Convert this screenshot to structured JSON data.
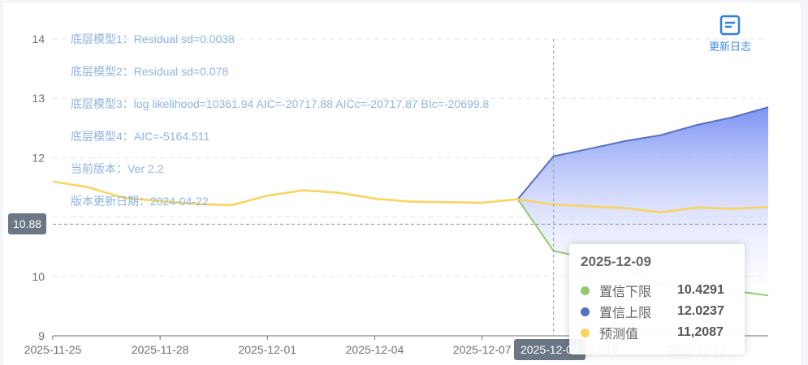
{
  "chart_data": {
    "type": "area",
    "x": [
      "2025-11-25",
      "2025-11-26",
      "2025-11-27",
      "2025-11-28",
      "2025-11-29",
      "2025-11-30",
      "2025-12-01",
      "2025-12-02",
      "2025-12-03",
      "2025-12-04",
      "2025-12-05",
      "2025-12-06",
      "2025-12-07",
      "2025-12-08",
      "2025-12-09",
      "2025-12-10",
      "2025-12-11",
      "2025-12-12",
      "2025-12-13",
      "2025-12-14",
      "2025-12-15"
    ],
    "xticks": [
      "2025-11-25",
      "2025-11-28",
      "2025-12-01",
      "2025-12-04",
      "2025-12-07",
      "2025-12-10",
      "2025-12-13"
    ],
    "yticks": [
      9,
      10,
      11,
      12,
      13,
      14
    ],
    "ylim": [
      9,
      14
    ],
    "grid": true,
    "series": [
      {
        "name": "预测值",
        "color": "#fbd25a",
        "values": [
          11.6,
          11.5,
          11.32,
          11.27,
          11.22,
          11.2,
          11.36,
          11.45,
          11.41,
          11.31,
          11.26,
          11.25,
          11.24,
          11.3,
          11.2087,
          11.18,
          11.15,
          11.08,
          11.16,
          11.14,
          11.17
        ]
      },
      {
        "name": "置信下限",
        "color": "#90cc6f",
        "values": [
          null,
          null,
          null,
          null,
          null,
          null,
          null,
          null,
          null,
          null,
          null,
          null,
          null,
          11.3,
          10.4291,
          10.3,
          10.15,
          9.85,
          9.87,
          9.76,
          9.68
        ]
      },
      {
        "name": "置信上限",
        "color": "#5470c6",
        "values": [
          null,
          null,
          null,
          null,
          null,
          null,
          null,
          null,
          null,
          null,
          null,
          null,
          null,
          11.3,
          12.0237,
          12.15,
          12.28,
          12.38,
          12.55,
          12.68,
          12.85
        ]
      }
    ],
    "axis_pointer": {
      "x": "2025-12-09",
      "y": "10.88",
      "y_value": 10.88
    }
  },
  "info": {
    "lines": [
      "底层模型1：Residual sd=0.0038",
      "底层模型2：Residual sd=0.078",
      "底层模型3：log likelihood=10361.94 AIC=-20717.88 AICc=-20717.87 BIc=-20699.8",
      "底层模型4：AIC=-5164.511",
      "当前版本：Ver 2.2",
      "版本更新日期：2024-04-22"
    ]
  },
  "changelog": {
    "label": "更新日志",
    "icon": "document-icon"
  },
  "tooltip": {
    "title": "2025-12-09",
    "rows": [
      {
        "name": "置信下限",
        "value": "10.4291",
        "color": "#90cc6f"
      },
      {
        "name": "置信上限",
        "value": "12.0237",
        "color": "#5470c6"
      },
      {
        "name": "预测值",
        "value": "11,2087",
        "color": "#fbd25a"
      }
    ]
  }
}
